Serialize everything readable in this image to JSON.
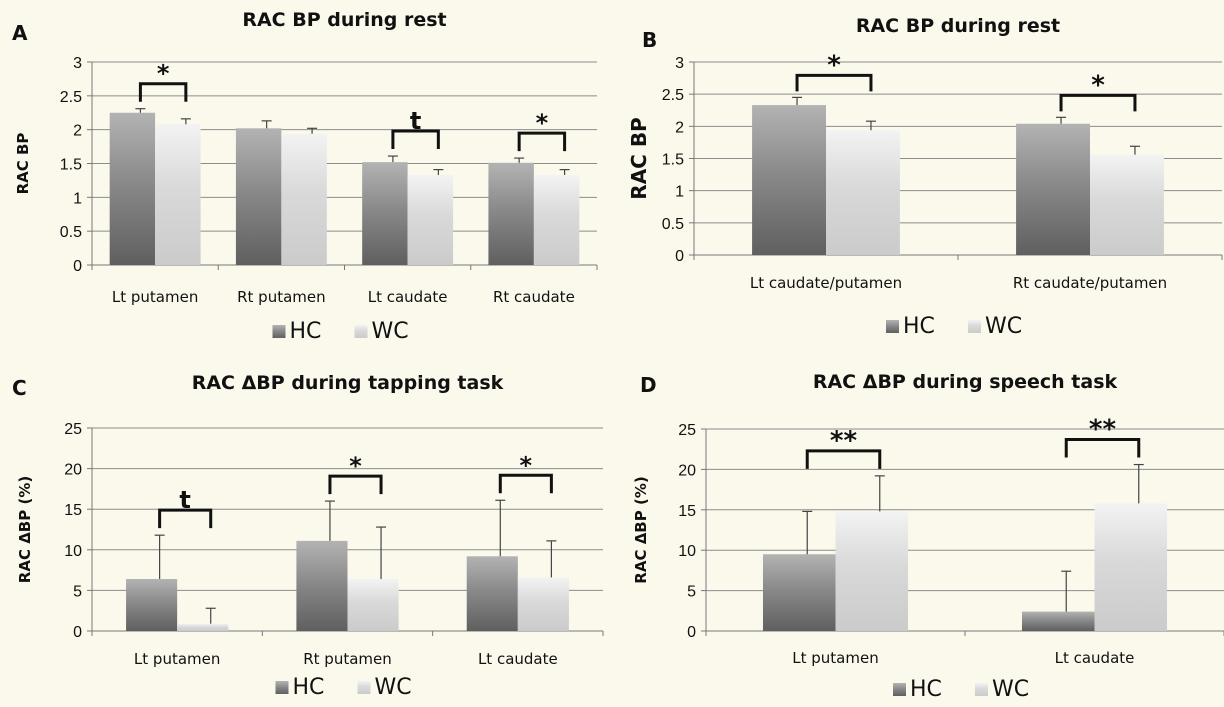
{
  "colors": {
    "HC": "#8a8a8a",
    "WC": "#d9d9d9",
    "background": "#fbf9ec",
    "grid": "#8c8c8c"
  },
  "chart_data": [
    {
      "panel": "A",
      "type": "bar",
      "title": "RAC BP during rest",
      "ylabel": "RAC BP",
      "ylim": [
        0,
        3
      ],
      "yticks": [
        "0",
        "0.5",
        "1",
        "1.5",
        "2",
        "2.5",
        "3"
      ],
      "grid": true,
      "legend_position": "bottom",
      "categories": [
        "Lt putamen",
        "Rt putamen",
        "Lt caudate",
        "Rt caudate"
      ],
      "series": [
        {
          "name": "HC",
          "values": [
            2.25,
            2.02,
            1.52,
            1.51
          ],
          "errors": [
            0.06,
            0.11,
            0.09,
            0.07
          ]
        },
        {
          "name": "WC",
          "values": [
            2.08,
            1.94,
            1.33,
            1.33
          ],
          "errors": [
            0.08,
            0.08,
            0.08,
            0.08
          ]
        }
      ],
      "significance": [
        "*",
        "",
        "t",
        "*"
      ]
    },
    {
      "panel": "B",
      "type": "bar",
      "title": "RAC BP during rest",
      "ylabel": "RAC BP",
      "ylim": [
        0,
        3
      ],
      "yticks": [
        "0",
        "0.5",
        "1",
        "1.5",
        "2",
        "2.5",
        "3"
      ],
      "grid": true,
      "legend_position": "bottom",
      "categories": [
        "Lt caudate/putamen",
        "Rt caudate/putamen"
      ],
      "series": [
        {
          "name": "HC",
          "values": [
            2.33,
            2.04
          ],
          "errors": [
            0.12,
            0.1
          ]
        },
        {
          "name": "WC",
          "values": [
            1.94,
            1.56
          ],
          "errors": [
            0.14,
            0.13
          ]
        }
      ],
      "significance": [
        "*",
        "*"
      ]
    },
    {
      "panel": "C",
      "type": "bar",
      "title": "RAC ΔBP during tapping task",
      "ylabel": "RAC ΔBP (%)",
      "ylim": [
        0,
        25
      ],
      "yticks": [
        "0",
        "5",
        "10",
        "15",
        "20",
        "25"
      ],
      "grid": true,
      "legend_position": "bottom",
      "categories": [
        "Lt putamen",
        "Rt putamen",
        "Lt caudate"
      ],
      "series": [
        {
          "name": "HC",
          "values": [
            6.4,
            11.1,
            9.2
          ],
          "errors": [
            5.4,
            4.9,
            6.9
          ]
        },
        {
          "name": "WC",
          "values": [
            0.9,
            6.4,
            6.6
          ],
          "errors": [
            1.9,
            6.4,
            4.5
          ]
        }
      ],
      "significance": [
        "t",
        "*",
        "*"
      ]
    },
    {
      "panel": "D",
      "type": "bar",
      "title": "RAC ΔBP during speech task",
      "ylabel": "RAC ΔBP (%)",
      "ylim": [
        0,
        25
      ],
      "yticks": [
        "0",
        "5",
        "10",
        "15",
        "20",
        "25"
      ],
      "grid": true,
      "legend_position": "bottom",
      "categories": [
        "Lt putamen",
        "Lt caudate"
      ],
      "series": [
        {
          "name": "HC",
          "values": [
            9.5,
            2.4
          ],
          "errors": [
            5.3,
            5.0
          ]
        },
        {
          "name": "WC",
          "values": [
            14.8,
            15.8
          ],
          "errors": [
            4.4,
            4.8
          ]
        }
      ],
      "significance": [
        "**",
        "**"
      ]
    }
  ]
}
